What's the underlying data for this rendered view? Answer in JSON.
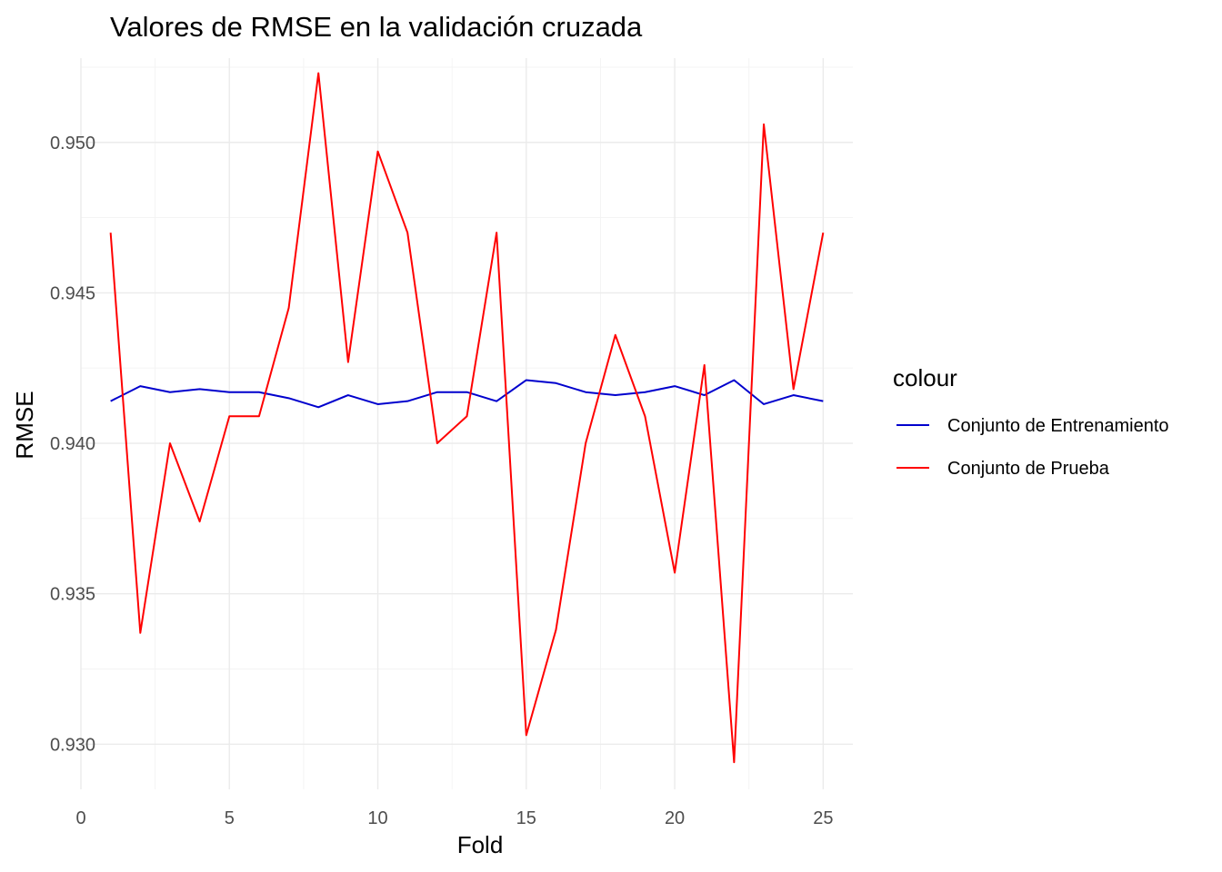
{
  "chart_data": {
    "type": "line",
    "title": "Valores de RMSE en la validación cruzada",
    "xlabel": "Fold",
    "ylabel": "RMSE",
    "xlim": [
      0,
      26
    ],
    "ylim": [
      0.9285,
      0.9528
    ],
    "x_ticks": [
      0,
      5,
      10,
      15,
      20,
      25
    ],
    "x_tick_labels": [
      "0",
      "5",
      "10",
      "15",
      "20",
      "25"
    ],
    "y_ticks": [
      0.93,
      0.935,
      0.94,
      0.945,
      0.95
    ],
    "y_tick_labels": [
      "0.930",
      "0.935",
      "0.940",
      "0.945",
      "0.950"
    ],
    "grid": true,
    "legend": {
      "title": "colour",
      "placement": "right"
    },
    "x": [
      1,
      2,
      3,
      4,
      5,
      6,
      7,
      8,
      9,
      10,
      11,
      12,
      13,
      14,
      15,
      16,
      17,
      18,
      19,
      20,
      21,
      22,
      23,
      24,
      25
    ],
    "series": [
      {
        "name": "Conjunto de Entrenamiento",
        "color": "#0000CD",
        "values": [
          0.9414,
          0.9419,
          0.9417,
          0.9418,
          0.9417,
          0.9417,
          0.9415,
          0.9412,
          0.9416,
          0.9413,
          0.9414,
          0.9417,
          0.9417,
          0.9414,
          0.9421,
          0.942,
          0.9417,
          0.9416,
          0.9417,
          0.9419,
          0.9416,
          0.9421,
          0.9413,
          0.9416,
          0.9414
        ]
      },
      {
        "name": "Conjunto de Prueba",
        "color": "#FF0000",
        "values": [
          0.947,
          0.9337,
          0.94,
          0.9374,
          0.9409,
          0.9409,
          0.9445,
          0.9523,
          0.9427,
          0.9497,
          0.947,
          0.94,
          0.9409,
          0.947,
          0.9303,
          0.9338,
          0.94,
          0.9436,
          0.9409,
          0.9357,
          0.9426,
          0.9294,
          0.9506,
          0.9418,
          0.947
        ]
      }
    ]
  }
}
